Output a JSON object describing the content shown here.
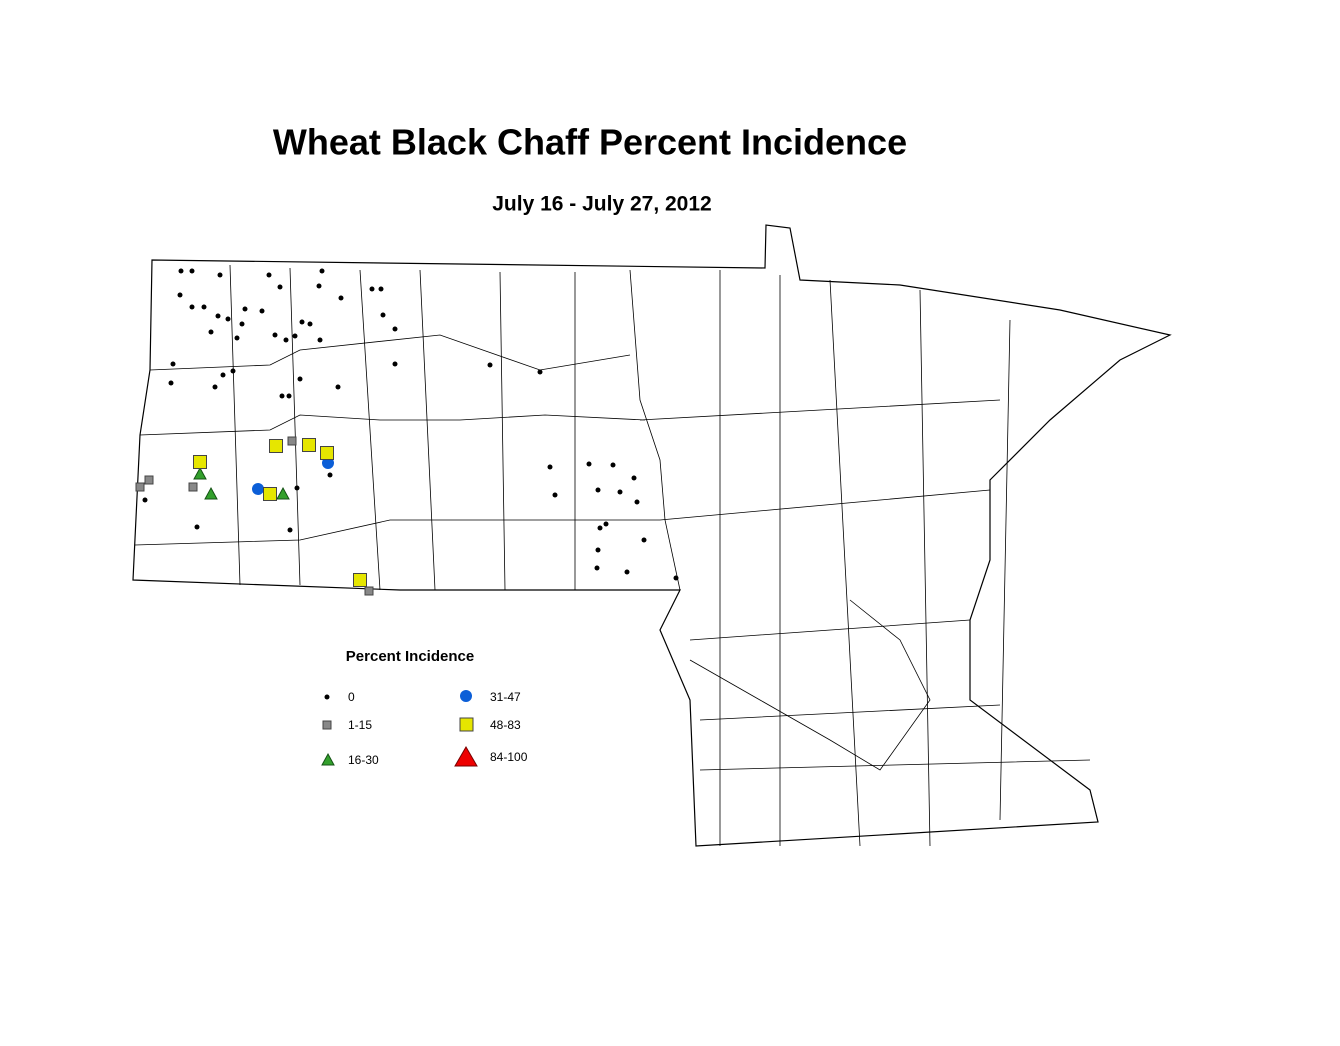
{
  "title": "Wheat Black Chaff Percent Incidence",
  "subtitle": "July 16 - July 27, 2012",
  "legend": {
    "title": "Percent Incidence",
    "items": [
      "0",
      "1-15",
      "16-30",
      "31-47",
      "48-83",
      "84-100"
    ]
  }
}
